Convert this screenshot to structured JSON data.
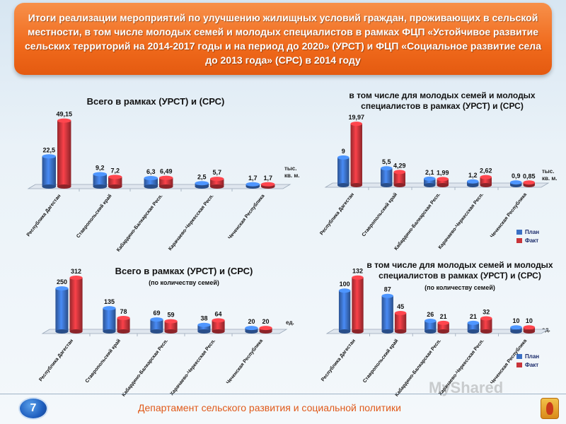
{
  "header": {
    "title": "Итоги реализации мероприятий по улучшению жилищных условий граждан, проживающих в сельской местности, в том числе молодых семей и молодых специалистов в рамках ФЦП «Устойчивое развитие сельских территорий на 2014-2017 годы и на период до 2020» (УРСТ) и ФЦП «Социальное развитие села до 2013 года» (СРС) в 2014 году"
  },
  "colors": {
    "plan": "#3a6fc4",
    "fact": "#c8343a",
    "header": "#f07a2a"
  },
  "legend": {
    "plan": "План",
    "fact": "Факт"
  },
  "chart_data": [
    {
      "type": "bar",
      "title": "Всего в рамках (УРСТ) и (СРС)",
      "subtitle": "",
      "unit": "тыс. кв. м.",
      "categories": [
        "Республика Дагестан",
        "Ставропольский край",
        "Кабардино-Балкарская Респ.",
        "Карачаево-Черкесская Респ.",
        "Чеченская Республика"
      ],
      "series": [
        {
          "key": "plan",
          "values": [
            22.5,
            9.2,
            6.3,
            2.5,
            1.7
          ],
          "labels": [
            "22,5",
            "9,2",
            "6,3",
            "2,5",
            "1,7"
          ]
        },
        {
          "key": "fact",
          "values": [
            49.15,
            7.2,
            6.49,
            5.7,
            1.7
          ],
          "labels": [
            "49,15",
            "7,2",
            "6,49",
            "5,7",
            "1,7"
          ]
        }
      ],
      "ylim": [
        0,
        50
      ],
      "legend": false
    },
    {
      "type": "bar",
      "title": "в том числе для молодых семей и молодых специалистов в рамках (УРСТ) и (СРС)",
      "subtitle": "",
      "unit": "тыс. кв. м.",
      "categories": [
        "Республика Дагестан",
        "Ставропольский край",
        "Кабардино-Балкарская Респ.",
        "Карачаево-Черкесская Респ.",
        "Чеченская Республика"
      ],
      "series": [
        {
          "key": "plan",
          "values": [
            9,
            5.5,
            2.1,
            1.2,
            0.9
          ],
          "labels": [
            "9",
            "5,5",
            "2,1",
            "1,2",
            "0,9"
          ]
        },
        {
          "key": "fact",
          "values": [
            19.97,
            4.29,
            1.99,
            2.62,
            0.85
          ],
          "labels": [
            "19,97",
            "4,29",
            "1,99",
            "2,62",
            "0,85"
          ]
        }
      ],
      "ylim": [
        0,
        20
      ],
      "legend": true
    },
    {
      "type": "bar",
      "title": "Всего в рамках (УРСТ) и (СРС)",
      "subtitle": "(по количеству семей)",
      "unit": "ед.",
      "categories": [
        "Республика Дагестан",
        "Ставропольский край",
        "Кабардино-Балкарская Респ.",
        "Карачаево-Черкесская Респ.",
        "Чеченская Республика"
      ],
      "series": [
        {
          "key": "plan",
          "values": [
            250,
            135,
            69,
            38,
            20
          ],
          "labels": [
            "250",
            "135",
            "69",
            "38",
            "20"
          ]
        },
        {
          "key": "fact",
          "values": [
            312,
            78,
            59,
            64,
            20
          ],
          "labels": [
            "312",
            "78",
            "59",
            "64",
            "20"
          ]
        }
      ],
      "ylim": [
        0,
        320
      ],
      "legend": false
    },
    {
      "type": "bar",
      "title": "в том числе для молодых семей и молодых специалистов в рамках (УРСТ) и (СРС)",
      "subtitle": "(по количеству семей)",
      "unit": "ед.",
      "categories": [
        "Республика Дагестан",
        "Ставропольский край",
        "Кабардино-Балкарская Респ.",
        "Карачаево-Черкесская Респ.",
        "Чеченская Республика"
      ],
      "series": [
        {
          "key": "plan",
          "values": [
            100,
            87,
            26,
            21,
            10
          ],
          "labels": [
            "100",
            "87",
            "26",
            "21",
            "10"
          ]
        },
        {
          "key": "fact",
          "values": [
            132,
            45,
            21,
            32,
            10
          ],
          "labels": [
            "132",
            "45",
            "21",
            "32",
            "10"
          ]
        }
      ],
      "ylim": [
        0,
        135
      ],
      "legend": true
    }
  ],
  "footer": {
    "page": "7",
    "department": "Департамент сельского развития и социальной политики",
    "watermark": "MyShared"
  }
}
